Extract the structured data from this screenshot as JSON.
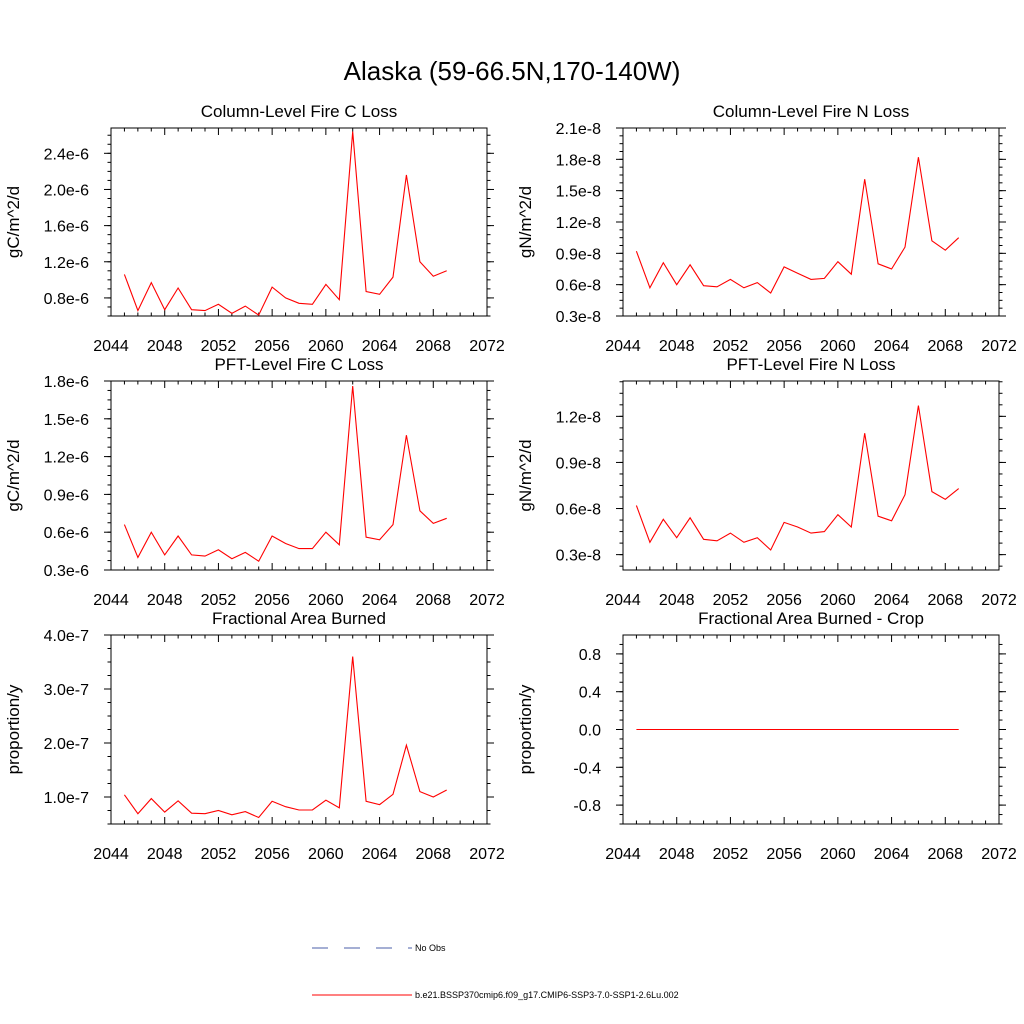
{
  "title": "Alaska (59-66.5N,170-140W)",
  "legend": [
    {
      "label": "No Obs",
      "style": "dashed",
      "color": "#4b5fa8"
    },
    {
      "label": "b.e21.BSSP370cmip6.f09_g17.CMIP6-SSP3-7.0-SSP1-2.6Lu.002",
      "style": "solid",
      "color": "#ff0000"
    }
  ],
  "chart_data": [
    {
      "type": "line",
      "title": "Column-Level Fire C Loss",
      "ylabel": "gC/m^2/d",
      "xlim": [
        2044,
        2072
      ],
      "xticks": [
        2044,
        2048,
        2052,
        2056,
        2060,
        2064,
        2068,
        2072
      ],
      "xtick_labels": [
        "2044",
        "2048",
        "2052",
        "2056",
        "2060",
        "2064",
        "2068",
        "2072"
      ],
      "ylim": [
        6e-07,
        2.68e-06
      ],
      "yticks": [
        8e-07,
        1.2e-06,
        1.6e-06,
        2e-06,
        2.4e-06
      ],
      "ytick_labels": [
        "0.8e-6",
        "1.2e-6",
        "1.6e-6",
        "2.0e-6",
        "2.4e-6"
      ],
      "series": [
        {
          "color": "#ff0000",
          "x": [
            2045,
            2046,
            2047,
            2048,
            2049,
            2050,
            2051,
            2052,
            2053,
            2054,
            2055,
            2056,
            2057,
            2058,
            2059,
            2060,
            2061,
            2062,
            2063,
            2064,
            2065,
            2066,
            2067,
            2068,
            2069
          ],
          "y": [
            1.06e-06,
            6.6e-07,
            9.7e-07,
            6.7e-07,
            9.1e-07,
            6.7e-07,
            6.6e-07,
            7.3e-07,
            6.3e-07,
            7.1e-07,
            6.1e-07,
            9.2e-07,
            8e-07,
            7.4e-07,
            7.3e-07,
            9.5e-07,
            7.8e-07,
            2.64e-06,
            8.7e-07,
            8.4e-07,
            1.03e-06,
            2.16e-06,
            1.2e-06,
            1.04e-06,
            1.1e-06
          ]
        }
      ]
    },
    {
      "type": "line",
      "title": "Column-Level Fire N Loss",
      "ylabel": "gN/m^2/d",
      "xlim": [
        2044,
        2072
      ],
      "xticks": [
        2044,
        2048,
        2052,
        2056,
        2060,
        2064,
        2068,
        2072
      ],
      "xtick_labels": [
        "2044",
        "2048",
        "2052",
        "2056",
        "2060",
        "2064",
        "2068",
        "2072"
      ],
      "ylim": [
        3e-09,
        2.1e-08
      ],
      "yticks": [
        3e-09,
        6e-09,
        9e-09,
        1.2e-08,
        1.5e-08,
        1.8e-08,
        2.1e-08
      ],
      "ytick_labels": [
        "0.3e-8",
        "0.6e-8",
        "0.9e-8",
        "1.2e-8",
        "1.5e-8",
        "1.8e-8",
        "2.1e-8"
      ],
      "series": [
        {
          "color": "#ff0000",
          "x": [
            2045,
            2046,
            2047,
            2048,
            2049,
            2050,
            2051,
            2052,
            2053,
            2054,
            2055,
            2056,
            2057,
            2058,
            2059,
            2060,
            2061,
            2062,
            2063,
            2064,
            2065,
            2066,
            2067,
            2068,
            2069
          ],
          "y": [
            9.2e-09,
            5.7e-09,
            8.1e-09,
            6e-09,
            7.9e-09,
            5.9e-09,
            5.8e-09,
            6.5e-09,
            5.7e-09,
            6.2e-09,
            5.2e-09,
            7.7e-09,
            7.1e-09,
            6.5e-09,
            6.6e-09,
            8.2e-09,
            7e-09,
            1.61e-08,
            8e-09,
            7.5e-09,
            9.6e-09,
            1.82e-08,
            1.02e-08,
            9.3e-09,
            1.05e-08
          ]
        }
      ]
    },
    {
      "type": "line",
      "title": "PFT-Level Fire C Loss",
      "ylabel": "gC/m^2/d",
      "xlim": [
        2044,
        2072
      ],
      "xticks": [
        2044,
        2048,
        2052,
        2056,
        2060,
        2064,
        2068,
        2072
      ],
      "xtick_labels": [
        "2044",
        "2048",
        "2052",
        "2056",
        "2060",
        "2064",
        "2068",
        "2072"
      ],
      "ylim": [
        3e-07,
        1.8e-06
      ],
      "yticks": [
        3e-07,
        6e-07,
        9e-07,
        1.2e-06,
        1.5e-06,
        1.8e-06
      ],
      "ytick_labels": [
        "0.3e-6",
        "0.6e-6",
        "0.9e-6",
        "1.2e-6",
        "1.5e-6",
        "1.8e-6"
      ],
      "series": [
        {
          "color": "#ff0000",
          "x": [
            2045,
            2046,
            2047,
            2048,
            2049,
            2050,
            2051,
            2052,
            2053,
            2054,
            2055,
            2056,
            2057,
            2058,
            2059,
            2060,
            2061,
            2062,
            2063,
            2064,
            2065,
            2066,
            2067,
            2068,
            2069
          ],
          "y": [
            6.6e-07,
            4e-07,
            6e-07,
            4.2e-07,
            5.7e-07,
            4.2e-07,
            4.1e-07,
            4.6e-07,
            3.9e-07,
            4.4e-07,
            3.7e-07,
            5.7e-07,
            5.1e-07,
            4.7e-07,
            4.7e-07,
            6e-07,
            5e-07,
            1.76e-06,
            5.6e-07,
            5.4e-07,
            6.6e-07,
            1.37e-06,
            7.7e-07,
            6.7e-07,
            7.1e-07
          ]
        }
      ]
    },
    {
      "type": "line",
      "title": "PFT-Level Fire N Loss",
      "ylabel": "gN/m^2/d",
      "xlim": [
        2044,
        2072
      ],
      "xticks": [
        2044,
        2048,
        2052,
        2056,
        2060,
        2064,
        2068,
        2072
      ],
      "xtick_labels": [
        "2044",
        "2048",
        "2052",
        "2056",
        "2060",
        "2064",
        "2068",
        "2072"
      ],
      "ylim": [
        2e-09,
        1.43e-08
      ],
      "yticks": [
        3e-09,
        6e-09,
        9e-09,
        1.2e-08
      ],
      "ytick_labels": [
        "0.3e-8",
        "0.6e-8",
        "0.9e-8",
        "1.2e-8"
      ],
      "series": [
        {
          "color": "#ff0000",
          "x": [
            2045,
            2046,
            2047,
            2048,
            2049,
            2050,
            2051,
            2052,
            2053,
            2054,
            2055,
            2056,
            2057,
            2058,
            2059,
            2060,
            2061,
            2062,
            2063,
            2064,
            2065,
            2066,
            2067,
            2068,
            2069
          ],
          "y": [
            6.2e-09,
            3.8e-09,
            5.3e-09,
            4.1e-09,
            5.4e-09,
            4e-09,
            3.9e-09,
            4.4e-09,
            3.8e-09,
            4.1e-09,
            3.3e-09,
            5.1e-09,
            4.8e-09,
            4.4e-09,
            4.5e-09,
            5.6e-09,
            4.8e-09,
            1.09e-08,
            5.5e-09,
            5.2e-09,
            6.9e-09,
            1.27e-08,
            7.1e-09,
            6.6e-09,
            7.3e-09
          ]
        }
      ]
    },
    {
      "type": "line",
      "title": "Fractional Area Burned",
      "ylabel": "proportion/y",
      "xlim": [
        2044,
        2072
      ],
      "xticks": [
        2044,
        2048,
        2052,
        2056,
        2060,
        2064,
        2068,
        2072
      ],
      "xtick_labels": [
        "2044",
        "2048",
        "2052",
        "2056",
        "2060",
        "2064",
        "2068",
        "2072"
      ],
      "ylim": [
        5e-08,
        4e-07
      ],
      "yticks": [
        1e-07,
        2e-07,
        3e-07,
        4e-07
      ],
      "ytick_labels": [
        "1.0e-7",
        "2.0e-7",
        "3.0e-7",
        "4.0e-7"
      ],
      "series": [
        {
          "color": "#ff0000",
          "x": [
            2045,
            2046,
            2047,
            2048,
            2049,
            2050,
            2051,
            2052,
            2053,
            2054,
            2055,
            2056,
            2057,
            2058,
            2059,
            2060,
            2061,
            2062,
            2063,
            2064,
            2065,
            2066,
            2067,
            2068,
            2069
          ],
          "y": [
            1.04e-07,
            6.9e-08,
            9.7e-08,
            7.2e-08,
            9.3e-08,
            7e-08,
            6.9e-08,
            7.5e-08,
            6.7e-08,
            7.3e-08,
            6.2e-08,
            9.2e-08,
            8.2e-08,
            7.6e-08,
            7.6e-08,
            9.4e-08,
            8e-08,
            3.6e-07,
            9.2e-08,
            8.6e-08,
            1.05e-07,
            1.96e-07,
            1.1e-07,
            1e-07,
            1.13e-07
          ]
        }
      ]
    },
    {
      "type": "line",
      "title": "Fractional Area Burned - Crop",
      "ylabel": "proportion/y",
      "xlim": [
        2044,
        2072
      ],
      "xticks": [
        2044,
        2048,
        2052,
        2056,
        2060,
        2064,
        2068,
        2072
      ],
      "xtick_labels": [
        "2044",
        "2048",
        "2052",
        "2056",
        "2060",
        "2064",
        "2068",
        "2072"
      ],
      "ylim": [
        -1.0,
        1.0
      ],
      "yticks": [
        -0.8,
        -0.4,
        0.0,
        0.4,
        0.8
      ],
      "ytick_labels": [
        "-0.8",
        "-0.4",
        "0.0",
        "0.4",
        "0.8"
      ],
      "series": [
        {
          "color": "#ff0000",
          "x": [
            2045,
            2046,
            2047,
            2048,
            2049,
            2050,
            2051,
            2052,
            2053,
            2054,
            2055,
            2056,
            2057,
            2058,
            2059,
            2060,
            2061,
            2062,
            2063,
            2064,
            2065,
            2066,
            2067,
            2068,
            2069
          ],
          "y": [
            0,
            0,
            0,
            0,
            0,
            0,
            0,
            0,
            0,
            0,
            0,
            0,
            0,
            0,
            0,
            0,
            0,
            0,
            0,
            0,
            0,
            0,
            0,
            0,
            0
          ]
        }
      ]
    }
  ]
}
